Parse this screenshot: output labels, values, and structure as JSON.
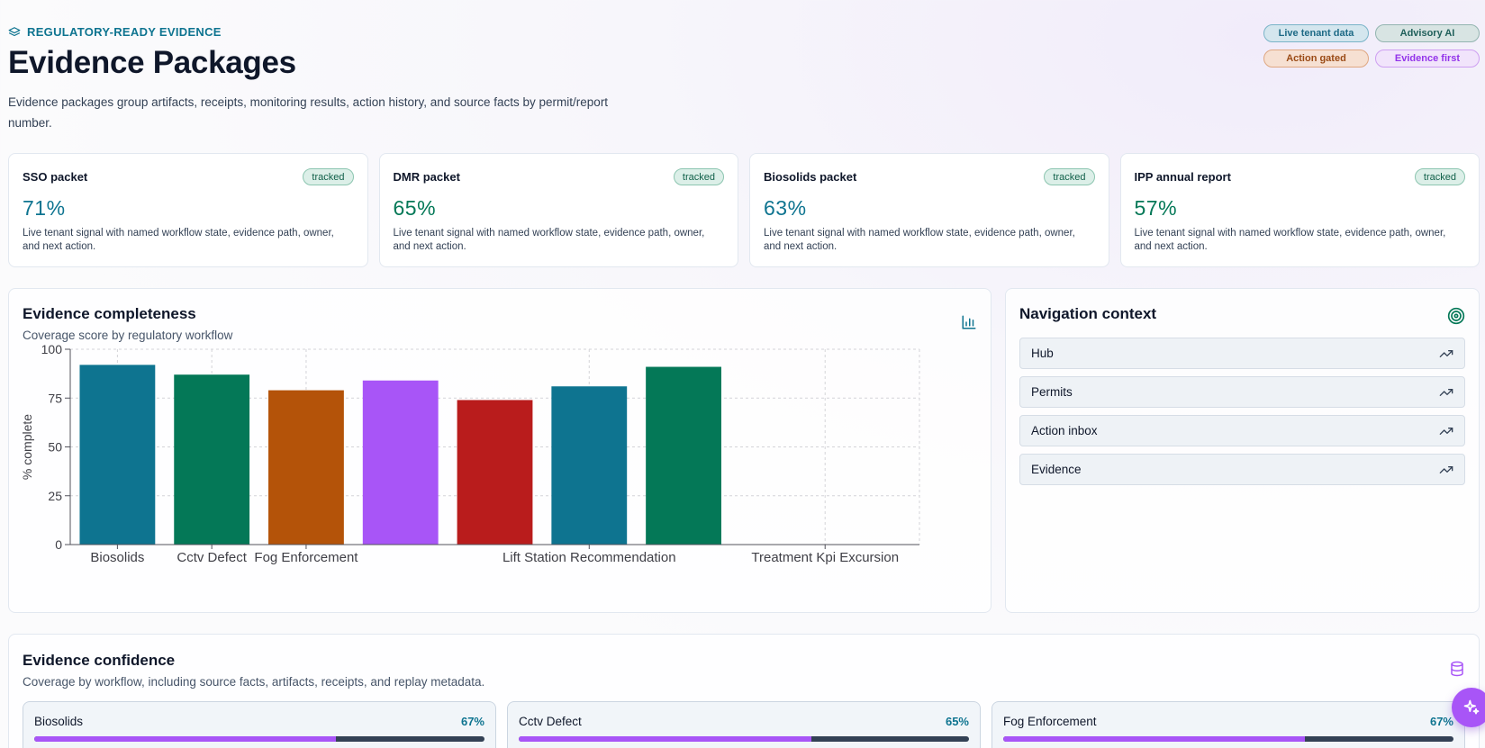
{
  "header": {
    "eyebrow": "REGULATORY-READY EVIDENCE",
    "title": "Evidence Packages",
    "description": "Evidence packages group artifacts, receipts, monitoring results, action history, and source facts by permit/report number."
  },
  "pills": [
    "Live tenant data",
    "Advisory AI",
    "Action gated",
    "Evidence first"
  ],
  "kpis": [
    {
      "name": "SSO packet",
      "badge": "tracked",
      "value": "71%",
      "note": "Live tenant signal with named workflow state, evidence path, owner, and next action."
    },
    {
      "name": "DMR packet",
      "badge": "tracked",
      "value": "65%",
      "note": "Live tenant signal with named workflow state, evidence path, owner, and next action."
    },
    {
      "name": "Biosolids packet",
      "badge": "tracked",
      "value": "63%",
      "note": "Live tenant signal with named workflow state, evidence path, owner, and next action."
    },
    {
      "name": "IPP annual report",
      "badge": "tracked",
      "value": "57%",
      "note": "Live tenant signal with named workflow state, evidence path, owner, and next action."
    }
  ],
  "chart_panel": {
    "title": "Evidence completeness",
    "subtitle": "Coverage score by regulatory workflow",
    "icon": "bar-chart-icon"
  },
  "chart_data": {
    "type": "bar",
    "ylabel": "% complete",
    "xlabel": "",
    "ylim": [
      0,
      100
    ],
    "yticks": [
      0,
      25,
      50,
      75,
      100
    ],
    "grid": true,
    "category_slots": 9,
    "values": [
      92,
      87,
      79,
      84,
      74,
      81,
      91
    ],
    "colors": [
      "#0e7490",
      "#047857",
      "#b45309",
      "#a855f7",
      "#b91c1c",
      "#0e7490",
      "#047857"
    ],
    "xticklabels": [
      {
        "slot": 0.5,
        "label": "Biosolids"
      },
      {
        "slot": 1.5,
        "label": "Cctv Defect"
      },
      {
        "slot": 2.5,
        "label": "Fog Enforcement"
      },
      {
        "slot": 5.5,
        "label": "Lift Station Recommendation"
      },
      {
        "slot": 8.0,
        "label": "Treatment Kpi Excursion"
      }
    ]
  },
  "nav_panel": {
    "title": "Navigation context",
    "icon": "target-icon",
    "items": [
      "Hub",
      "Permits",
      "Action inbox",
      "Evidence"
    ]
  },
  "confidence_panel": {
    "title": "Evidence confidence",
    "subtitle": "Coverage by workflow, including source facts, artifacts, receipts, and replay metadata.",
    "icon": "database-icon",
    "items": [
      {
        "name": "Biosolids",
        "pct": "67%",
        "value": 0.67
      },
      {
        "name": "Cctv Defect",
        "pct": "65%",
        "value": 0.65
      },
      {
        "name": "Fog Enforcement",
        "pct": "67%",
        "value": 0.67
      }
    ]
  }
}
